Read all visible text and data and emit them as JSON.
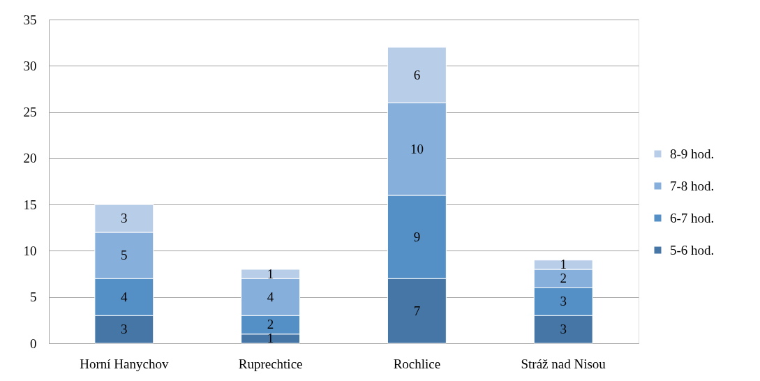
{
  "chart_data": {
    "type": "bar",
    "stacked": true,
    "categories": [
      "Horní Hanychov",
      "Ruprechtice",
      "Rochlice",
      "Stráž nad Nisou"
    ],
    "series": [
      {
        "name": "5-6 hod.",
        "color": "#4676a6",
        "values": [
          3,
          1,
          7,
          3
        ]
      },
      {
        "name": "6-7 hod.",
        "color": "#5490c6",
        "values": [
          4,
          2,
          9,
          3
        ]
      },
      {
        "name": "7-8 hod.",
        "color": "#86afdb",
        "values": [
          5,
          4,
          10,
          2
        ]
      },
      {
        "name": "8-9 hod.",
        "color": "#b8cde8",
        "values": [
          3,
          1,
          6,
          1
        ]
      }
    ],
    "ylim": [
      0,
      35
    ],
    "yticks": [
      0,
      5,
      10,
      15,
      20,
      25,
      30,
      35
    ],
    "grid": "y",
    "legend": "right",
    "data_labels": true
  }
}
